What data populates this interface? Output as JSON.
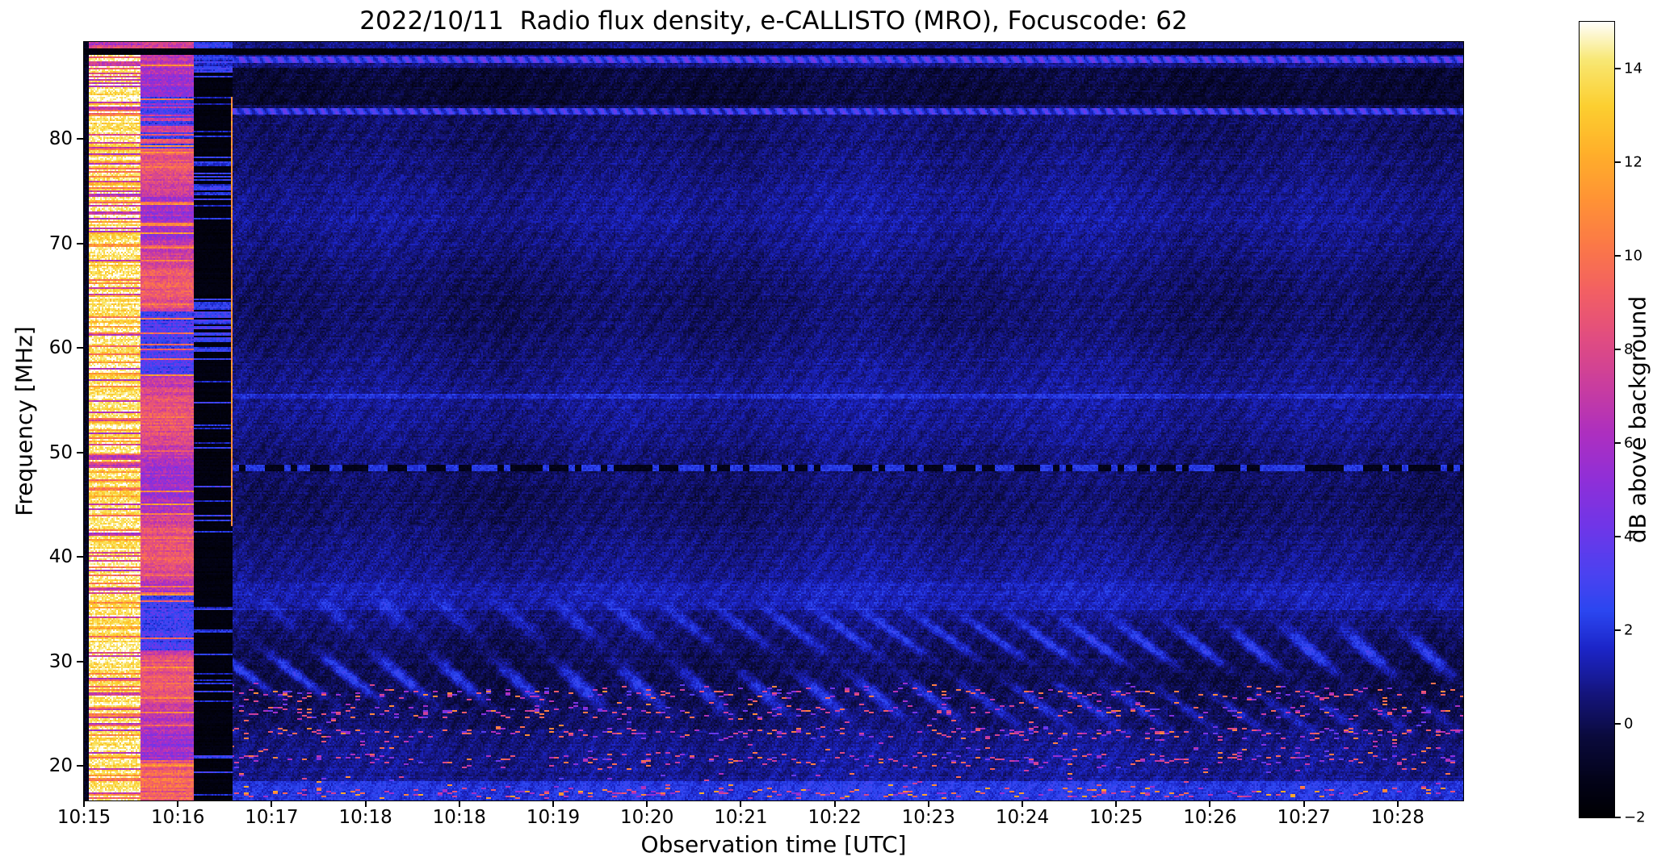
{
  "chart_data": {
    "type": "heatmap",
    "title": "2022/10/11  Radio flux density, e-CALLISTO (MRO), Focuscode: 62",
    "xlabel": "Observation time [UTC]",
    "ylabel": "Frequency [MHz]",
    "x_tick_labels": [
      "10:15",
      "10:16",
      "10:17",
      "10:18",
      "10:18",
      "10:19",
      "10:20",
      "10:21",
      "10:22",
      "10:23",
      "10:24",
      "10:25",
      "10:26",
      "10:27",
      "10:28"
    ],
    "y_tick_values": [
      20,
      30,
      40,
      50,
      60,
      70,
      80
    ],
    "y_range_mhz": [
      16.7,
      89.3
    ],
    "x_range_minutes": [
      0,
      14.7
    ],
    "grid": false,
    "legend": "colorbar-right",
    "colorbar": {
      "label": "dB above background",
      "tick_values": [
        14,
        12,
        10,
        8,
        6,
        4,
        2,
        0,
        -2
      ],
      "value_range": [
        -2,
        15
      ],
      "colormap_stops": [
        [
          -2.0,
          "#000002"
        ],
        [
          -1.2,
          "#03031a"
        ],
        [
          -0.3,
          "#0a0a3c"
        ],
        [
          0.6,
          "#14147a"
        ],
        [
          1.6,
          "#1c25c8"
        ],
        [
          2.4,
          "#2b46f0"
        ],
        [
          3.2,
          "#4b42f0"
        ],
        [
          4.2,
          "#6f36e8"
        ],
        [
          5.2,
          "#8f2fd8"
        ],
        [
          6.2,
          "#ad2fc0"
        ],
        [
          7.2,
          "#c93d9f"
        ],
        [
          8.2,
          "#e04c82"
        ],
        [
          9.2,
          "#f25f64"
        ],
        [
          10.2,
          "#fb7848"
        ],
        [
          11.2,
          "#ff9335"
        ],
        [
          12.2,
          "#ffb02a"
        ],
        [
          13.2,
          "#fccf30"
        ],
        [
          14.2,
          "#f8e875"
        ],
        [
          15.0,
          "#ffffff"
        ]
      ]
    },
    "features": {
      "description": "Quiet solar radio spectrogram: saturated white/yellow calibration segment at start, pink attenuated segment, black gap, then dark-blue noise background; wavy interference 23-36 MHz, bright RFI speckles 17-28 MHz, narrow horizontal lines near 48.5, 55.5, 82.5, 87.5 and a dark line near 88.3 MHz.",
      "background_db_range": [
        -0.3,
        1.8
      ],
      "calibration_bands": [
        {
          "t_start": 0.0,
          "t_end": 0.06,
          "kind": "dark-edge",
          "db_main": -1.5
        },
        {
          "t_start": 0.06,
          "t_end": 0.6,
          "kind": "saturated-white",
          "db_main": 13.8
        },
        {
          "t_start": 0.6,
          "t_end": 1.17,
          "kind": "pink",
          "db_main": 6.4
        },
        {
          "t_start": 1.17,
          "t_end": 1.58,
          "kind": "black-gap",
          "db_main": -1.7
        }
      ],
      "yellow_tick_line": {
        "t": 1.575,
        "f_range": [
          43,
          84
        ],
        "db": 10
      },
      "wave_interference": {
        "f_range": [
          23,
          36
        ],
        "f_peak": 29.5,
        "max_db": 2.6
      },
      "speckle_band": {
        "f_range": [
          16.8,
          28
        ],
        "row_centers": [
          17.4,
          20.6,
          23.2,
          25.2,
          26.9
        ],
        "db_range": [
          3.5,
          11
        ]
      },
      "spectral_lines": [
        {
          "f_range": [
            88.0,
            88.75
          ],
          "db": -1.6,
          "type": "dark",
          "global": true
        },
        {
          "f_range": [
            87.25,
            87.95
          ],
          "db": 2.4,
          "type": "bright-dashed"
        },
        {
          "f_range": [
            83.2,
            86.9
          ],
          "db": -0.9,
          "type": "dim"
        },
        {
          "f_range": [
            82.3,
            82.9
          ],
          "db": 2.0,
          "type": "bright-dashed"
        },
        {
          "f_range": [
            55.2,
            55.7
          ],
          "db": 0.9,
          "type": "bright"
        },
        {
          "f_range": [
            48.2,
            48.8
          ],
          "db": -1.2,
          "type": "dark-dashed"
        },
        {
          "f_range": [
            16.7,
            18.6
          ],
          "db": 1.2,
          "type": "bright"
        }
      ]
    }
  }
}
